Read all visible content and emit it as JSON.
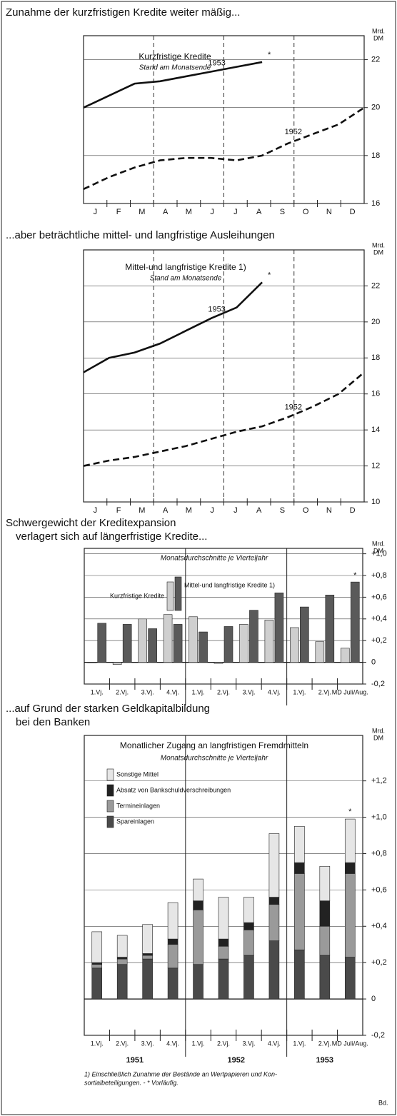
{
  "chart_data": [
    {
      "type": "line",
      "title": [
        "Zunahme der kurzfristigen Kredite weiter mäßig..."
      ],
      "panel_title": "Kurzfristige Kredite",
      "subtitle": "Stand am Monatsende",
      "y_label": [
        "Mrd.",
        "DM"
      ],
      "categories": [
        "J",
        "F",
        "M",
        "A",
        "M",
        "J",
        "J",
        "A",
        "S",
        "O",
        "N",
        "D"
      ],
      "series": [
        {
          "name": "1953",
          "color": "#111",
          "dash": false,
          "values": [
            20.0,
            20.5,
            21.0,
            21.1,
            21.3,
            21.5,
            21.7,
            21.9,
            null,
            null,
            null,
            null
          ],
          "annotation": "*"
        },
        {
          "name": "1952",
          "color": "#111",
          "dash": true,
          "values": [
            16.6,
            17.1,
            17.5,
            17.8,
            17.9,
            17.9,
            17.8,
            18.0,
            18.5,
            18.9,
            19.3,
            20.0
          ]
        }
      ],
      "ylim": [
        16,
        23
      ],
      "yticks": [
        16,
        18,
        20,
        22
      ],
      "grid": true
    },
    {
      "type": "line",
      "title": [
        "...aber beträchtliche mittel- und langfristige Ausleihungen"
      ],
      "panel_title": "Mittel-und langfristige Kredite 1)",
      "subtitle": "Stand am Monatsende",
      "y_label": [
        "Mrd.",
        "DM"
      ],
      "categories": [
        "J",
        "F",
        "M",
        "A",
        "M",
        "J",
        "J",
        "A",
        "S",
        "O",
        "N",
        "D"
      ],
      "series": [
        {
          "name": "1953",
          "color": "#111",
          "dash": false,
          "values": [
            17.2,
            18.0,
            18.3,
            18.8,
            19.5,
            20.2,
            20.8,
            22.2,
            null,
            null,
            null,
            null
          ],
          "annotation": "*"
        },
        {
          "name": "1952",
          "color": "#111",
          "dash": true,
          "values": [
            12.0,
            12.3,
            12.5,
            12.8,
            13.1,
            13.5,
            13.9,
            14.2,
            14.7,
            15.3,
            16.0,
            17.2
          ]
        }
      ],
      "ylim": [
        10,
        24
      ],
      "yticks": [
        10,
        12,
        14,
        16,
        18,
        20,
        22
      ],
      "grid": true
    },
    {
      "type": "bar",
      "title": [
        "Schwergewicht der Kreditexpansion",
        "verlagert sich auf längerfristige Kredite..."
      ],
      "subtitle": "Monatsdurchschnitte je Vierteljahr",
      "y_label": [
        "Mrd.",
        "DM"
      ],
      "categories": [
        "1.Vj.",
        "2.Vj.",
        "3.Vj.",
        "4.Vj.",
        "1.Vj.",
        "2.Vj.",
        "3.Vj.",
        "4.Vj.",
        "1.Vj.",
        "2.Vj.",
        "MD Juli/Aug."
      ],
      "series": [
        {
          "name": "Kurzfristige Kredite",
          "color": "#cfcfcf",
          "values": [
            0.0,
            -0.02,
            0.4,
            0.44,
            0.42,
            -0.01,
            0.35,
            0.39,
            0.32,
            0.19,
            0.13
          ]
        },
        {
          "name": "Mittel-und langfristige Kredite 1)",
          "color": "#5a5a5a",
          "values": [
            0.36,
            0.35,
            0.31,
            0.35,
            0.28,
            0.33,
            0.48,
            0.64,
            0.51,
            0.62,
            0.74
          ]
        }
      ],
      "annotation": "*",
      "ylim": [
        -0.2,
        1.05
      ],
      "yticks": [
        {
          "value": -0.2,
          "label": "-0,2"
        },
        0,
        {
          "value": 0.2,
          "label": "+0,2"
        },
        {
          "value": 0.4,
          "label": "+0,4"
        },
        {
          "value": 0.6,
          "label": "+0,6"
        },
        {
          "value": 0.8,
          "label": "+0,8"
        },
        {
          "value": 1.0,
          "label": "+1,0"
        }
      ],
      "grid": true
    },
    {
      "type": "stacked_bar",
      "title": [
        "...auf Grund der starken Geldkapitalbildung",
        "bei den Banken"
      ],
      "panel_title": "Monatlicher Zugang an langfristigen Fremdmitteln",
      "subtitle": "Monatsdurchschnitte je Vierteljahr",
      "y_label": [
        "Mrd.",
        "DM"
      ],
      "categories": [
        "1.Vj.",
        "2.Vj.",
        "3.Vj.",
        "4.Vj.",
        "1.Vj.",
        "2.Vj.",
        "3.Vj.",
        "4.Vj.",
        "1.Vj.",
        "2.Vj.",
        "MD Juli/Aug."
      ],
      "years": [
        "1951",
        "1952",
        "1953"
      ],
      "series": [
        {
          "name": "Spareinlagen",
          "color": "#4a4a4a",
          "values": [
            0.17,
            0.19,
            0.22,
            0.17,
            0.19,
            0.22,
            0.24,
            0.32,
            0.27,
            0.24,
            0.23
          ]
        },
        {
          "name": "Termineinlagen",
          "color": "#9a9a9a",
          "values": [
            0.02,
            0.03,
            0.02,
            0.13,
            0.3,
            0.07,
            0.14,
            0.2,
            0.42,
            0.16,
            0.46
          ]
        },
        {
          "name": "Absatz von Bankschuldverschreibungen",
          "color": "#222",
          "values": [
            0.01,
            0.01,
            0.01,
            0.03,
            0.05,
            0.04,
            0.04,
            0.04,
            0.06,
            0.14,
            0.06
          ]
        },
        {
          "name": "Sonstige Mittel",
          "color": "#e6e6e6",
          "values": [
            0.17,
            0.12,
            0.16,
            0.2,
            0.12,
            0.23,
            0.14,
            0.35,
            0.2,
            0.19,
            0.24
          ]
        }
      ],
      "annotation": "*",
      "ylim": [
        -0.2,
        1.45
      ],
      "yticks": [
        {
          "value": -0.2,
          "label": "-0,2"
        },
        0,
        {
          "value": 0.2,
          "label": "+0,2"
        },
        {
          "value": 0.4,
          "label": "+0,4"
        },
        {
          "value": 0.6,
          "label": "+0,6"
        },
        {
          "value": 0.8,
          "label": "+0,8"
        },
        {
          "value": 1.0,
          "label": "+1,0"
        },
        {
          "value": 1.2,
          "label": "+1,2"
        }
      ],
      "grid": true,
      "footnote": [
        "1) Einschließlich Zunahme der Bestände an Wertpapieren und Kon-",
        "sortialbeteiligungen. - * Vorläufig."
      ],
      "signature": "Bd."
    }
  ]
}
